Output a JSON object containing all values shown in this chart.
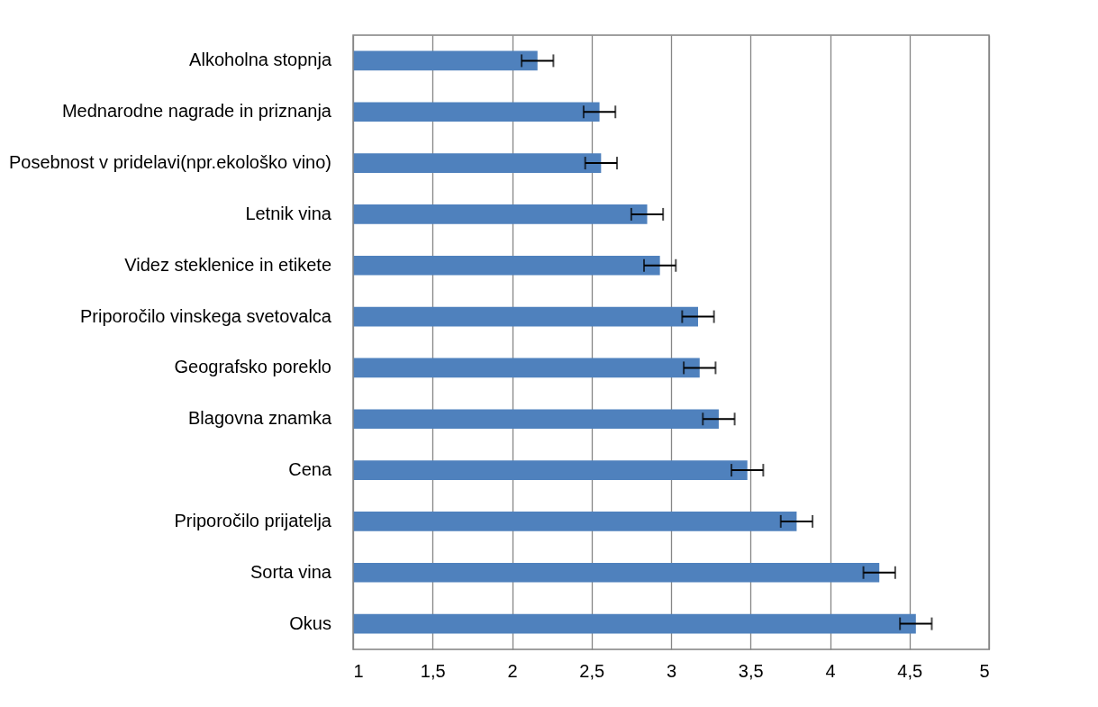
{
  "chart_data": {
    "type": "bar",
    "orientation": "horizontal",
    "categories": [
      "Alkoholna stopnja",
      "Mednarodne nagrade in priznanja",
      "Posebnost v pridelavi(npr.ekološko vino)",
      "Letnik vina",
      "Videz steklenice in etikete",
      "Priporočilo vinskega svetovalca",
      "Geografsko poreklo",
      "Blagovna znamka",
      "Cena",
      "Priporočilo prijatelja",
      "Sorta vina",
      "Okus"
    ],
    "values": [
      2.16,
      2.55,
      2.56,
      2.85,
      2.93,
      3.17,
      3.18,
      3.3,
      3.48,
      3.79,
      4.31,
      4.54
    ],
    "errors": [
      0.1,
      0.1,
      0.1,
      0.1,
      0.1,
      0.1,
      0.1,
      0.1,
      0.1,
      0.1,
      0.1,
      0.1
    ],
    "color": "#4f81bd",
    "xlim": [
      1,
      5
    ],
    "xticks": [
      1,
      {
        "value": 1.5,
        "label": "1,5"
      },
      2,
      {
        "value": 2.5,
        "label": "2,5"
      },
      3,
      {
        "value": 3.5,
        "label": "3,5"
      },
      4,
      {
        "value": 4.5,
        "label": "4,5"
      },
      5
    ],
    "grid": "x"
  }
}
